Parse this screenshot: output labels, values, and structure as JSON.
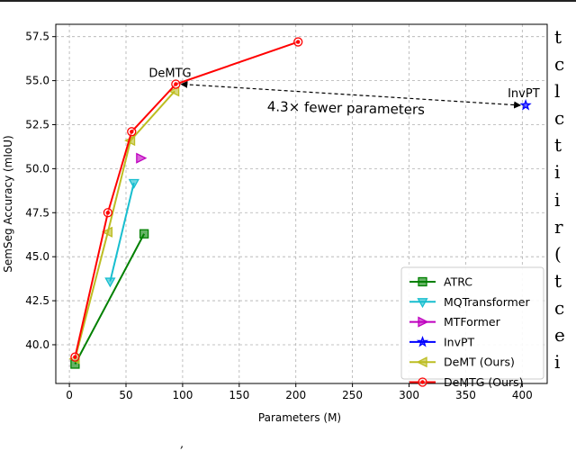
{
  "chart_data": {
    "type": "line",
    "xlabel": "Parameters (M)",
    "ylabel": "SemSeg Accuracy (mIoU)",
    "xlim": [
      -12,
      422
    ],
    "ylim": [
      37.8,
      58.2
    ],
    "xticks": [
      0,
      50,
      100,
      150,
      200,
      250,
      300,
      350,
      400
    ],
    "yticks": [
      40.0,
      42.5,
      45.0,
      47.5,
      50.0,
      52.5,
      55.0,
      57.5
    ],
    "grid": true,
    "legend_position": "lower-right",
    "series": [
      {
        "name": "ATRC",
        "color": "#008000",
        "marker": "square",
        "points": [
          [
            5,
            38.9
          ],
          [
            66,
            46.3
          ]
        ]
      },
      {
        "name": "MQTransformer",
        "color": "#17becf",
        "marker": "triangle-down",
        "points": [
          [
            36,
            43.6
          ],
          [
            57,
            49.2
          ]
        ]
      },
      {
        "name": "MTFormer",
        "color": "#bf00bf",
        "marker": "triangle-right",
        "points": [
          [
            63,
            50.6
          ]
        ]
      },
      {
        "name": "InvPT",
        "color": "#0000ff",
        "marker": "star",
        "points": [
          [
            403,
            53.6
          ]
        ]
      },
      {
        "name": "DeMT (Ours)",
        "color": "#bcbd22",
        "marker": "triangle-left",
        "points": [
          [
            5,
            39.2
          ],
          [
            34,
            46.4
          ],
          [
            54,
            51.6
          ],
          [
            93,
            54.4
          ]
        ]
      },
      {
        "name": "DeMTG (Ours)",
        "color": "#ff0000",
        "marker": "circle",
        "points": [
          [
            5,
            39.3
          ],
          [
            34,
            47.5
          ],
          [
            55,
            52.1
          ],
          [
            94,
            54.8
          ],
          [
            202,
            57.2
          ]
        ]
      }
    ],
    "annotations": [
      {
        "text": "DeMTG",
        "x": 94,
        "y": 54.8
      },
      {
        "text": "InvPT",
        "x": 403,
        "y": 53.6
      },
      {
        "text": "4.3× fewer parameters",
        "from": [
          403,
          53.6
        ],
        "to": [
          94,
          54.8
        ]
      }
    ]
  },
  "side_text": [
    "t",
    "c",
    "l",
    "c",
    "t",
    "i",
    "i",
    "r",
    "(",
    "t",
    "c",
    "e",
    "i"
  ]
}
